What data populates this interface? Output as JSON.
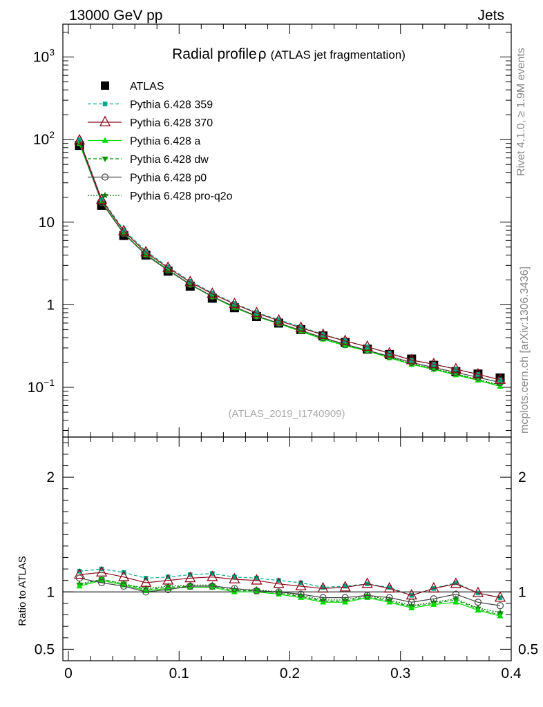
{
  "header": {
    "left": "13000 GeV pp",
    "right": "Jets"
  },
  "title": {
    "main": "Radial profile",
    "symbol": "ρ",
    "sub": "(ATLAS jet fragmentation)"
  },
  "side_labels": {
    "top": "Rivet 4.1.0, ≥ 1.9M events",
    "bottom": "mcplots.cern.ch [arXiv:1306.3436]"
  },
  "analysis_id": "(ATLAS_2019_I1740909)",
  "ratio_ylabel": "Ratio to ATLAS",
  "colors": {
    "data": "#000000",
    "p359": "#00aa88",
    "p370": "#8b0a1a",
    "pa": "#00dd00",
    "pdw": "#009900",
    "pp0": "#444444",
    "pq2o": "#007700"
  },
  "chart_data": {
    "type": "line",
    "x": [
      0.01,
      0.03,
      0.05,
      0.07,
      0.09,
      0.11,
      0.13,
      0.15,
      0.17,
      0.19,
      0.21,
      0.23,
      0.25,
      0.27,
      0.29,
      0.31,
      0.33,
      0.35,
      0.37,
      0.39
    ],
    "xlim": [
      -0.005,
      0.4
    ],
    "xticks": [
      {
        "v": 0,
        "label": "0"
      },
      {
        "v": 0.1,
        "label": "0.1"
      },
      {
        "v": 0.2,
        "label": "0.2"
      },
      {
        "v": 0.3,
        "label": "0.3"
      },
      {
        "v": 0.4,
        "label": "0.4"
      }
    ],
    "main": {
      "yscale": "log",
      "ylim": [
        0.025,
        2500
      ],
      "yticks": [
        {
          "v": 0.1,
          "base": "10",
          "exp": "−1"
        },
        {
          "v": 1,
          "base": "1",
          "exp": ""
        },
        {
          "v": 10,
          "base": "10",
          "exp": ""
        },
        {
          "v": 100,
          "base": "10",
          "exp": "2"
        },
        {
          "v": 1000,
          "base": "10",
          "exp": "3"
        }
      ]
    },
    "ratio": {
      "ylim": [
        0.4,
        2.35
      ],
      "yticks": [
        {
          "v": 0.5,
          "label": "0.5"
        },
        {
          "v": 1,
          "label": "1"
        },
        {
          "v": 2,
          "label": "2"
        }
      ]
    },
    "data": {
      "name": "ATLAS",
      "values": [
        85,
        16,
        6.9,
        4.0,
        2.55,
        1.68,
        1.2,
        0.92,
        0.72,
        0.6,
        0.5,
        0.42,
        0.35,
        0.29,
        0.25,
        0.22,
        0.185,
        0.155,
        0.145,
        0.13
      ]
    },
    "series": [
      {
        "key": "p359",
        "name": "Pythia 6.428 359",
        "marker": "square-small",
        "line": "dashed",
        "ratio": [
          1.18,
          1.2,
          1.17,
          1.12,
          1.13,
          1.15,
          1.16,
          1.13,
          1.12,
          1.1,
          1.08,
          1.04,
          1.05,
          1.07,
          1.04,
          0.97,
          1.03,
          1.08,
          0.99,
          0.95
        ]
      },
      {
        "key": "p370",
        "name": "Pythia 6.428 370",
        "marker": "triangle-open",
        "line": "solid",
        "ratio": [
          1.15,
          1.17,
          1.13,
          1.08,
          1.1,
          1.12,
          1.13,
          1.11,
          1.1,
          1.07,
          1.05,
          1.03,
          1.04,
          1.07,
          1.03,
          0.97,
          1.03,
          1.07,
          0.99,
          0.95
        ]
      },
      {
        "key": "pa",
        "name": "Pythia 6.428 a",
        "marker": "triangle-filled",
        "line": "solid",
        "ratio": [
          1.05,
          1.1,
          1.06,
          1.01,
          1.03,
          1.04,
          1.04,
          1.0,
          1.0,
          0.98,
          0.95,
          0.91,
          0.91,
          0.95,
          0.91,
          0.86,
          0.89,
          0.91,
          0.84,
          0.79
        ]
      },
      {
        "key": "pdw",
        "name": "Pythia 6.428 dw",
        "marker": "triangle-down-filled",
        "line": "dashed",
        "ratio": [
          1.06,
          1.11,
          1.07,
          1.02,
          1.04,
          1.05,
          1.05,
          1.01,
          1.01,
          0.99,
          0.96,
          0.92,
          0.92,
          0.96,
          0.92,
          0.87,
          0.9,
          0.93,
          0.85,
          0.8
        ]
      },
      {
        "key": "pp0",
        "name": "Pythia 6.428 p0",
        "marker": "circle-open",
        "line": "solid",
        "ratio": [
          1.12,
          1.08,
          1.05,
          1.0,
          1.02,
          1.05,
          1.05,
          1.03,
          1.01,
          1.0,
          0.98,
          0.95,
          0.95,
          0.97,
          0.95,
          0.91,
          0.94,
          0.98,
          0.91,
          0.88
        ]
      },
      {
        "key": "pq2o",
        "name": "Pythia 6.428 pro-q2o",
        "marker": "star-filled",
        "line": "dotted",
        "ratio": [
          1.07,
          1.11,
          1.07,
          1.03,
          1.05,
          1.06,
          1.06,
          1.02,
          1.02,
          1.0,
          0.97,
          0.93,
          0.93,
          0.97,
          0.93,
          0.88,
          0.91,
          0.94,
          0.86,
          0.82
        ]
      }
    ]
  }
}
